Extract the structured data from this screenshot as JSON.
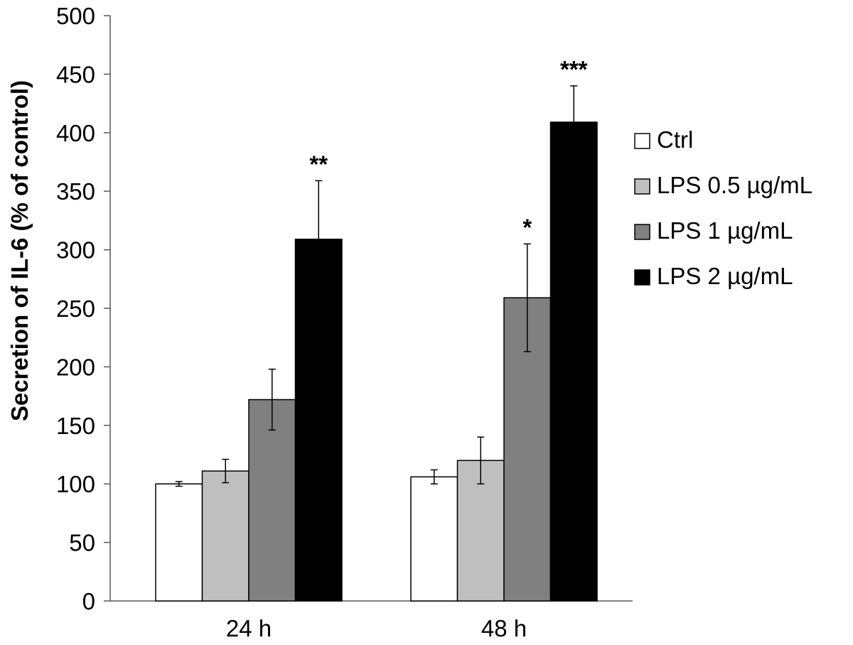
{
  "chart_data": {
    "type": "bar",
    "ylabel": "Secretion of IL-6 (% of control)",
    "xlabel": "",
    "ylim": [
      0,
      500
    ],
    "yticks": [
      0,
      50,
      100,
      150,
      200,
      250,
      300,
      350,
      400,
      450,
      500
    ],
    "categories": [
      "24 h",
      "48 h"
    ],
    "grid": false,
    "legend_position": "right",
    "series": [
      {
        "name": "Ctrl",
        "color": "#ffffff",
        "values": [
          100,
          106
        ],
        "errors": [
          2,
          6
        ],
        "significance": [
          "",
          ""
        ]
      },
      {
        "name": "LPS 0.5 µg/mL",
        "color": "#bfbfbf",
        "values": [
          111,
          120
        ],
        "errors": [
          10,
          20
        ],
        "significance": [
          "",
          ""
        ]
      },
      {
        "name": "LPS 1 µg/mL",
        "color": "#808080",
        "values": [
          172,
          259
        ],
        "errors": [
          26,
          46
        ],
        "significance": [
          "",
          "*"
        ]
      },
      {
        "name": "LPS 2 µg/mL",
        "color": "#000000",
        "values": [
          309,
          409
        ],
        "errors": [
          50,
          31
        ],
        "significance": [
          "**",
          "***"
        ]
      }
    ]
  }
}
